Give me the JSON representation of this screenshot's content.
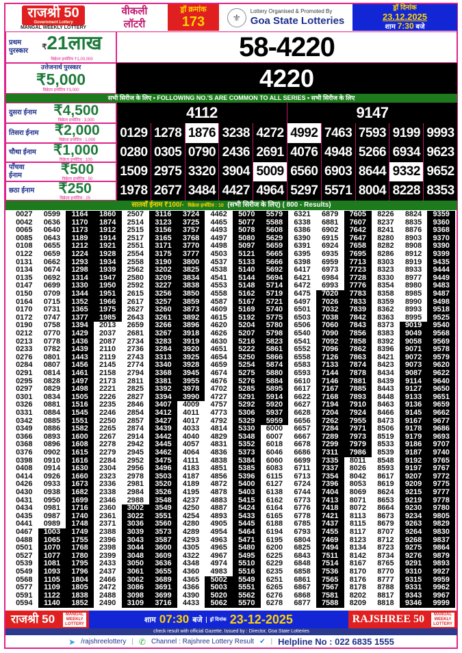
{
  "header": {
    "logo_title": "राजश्री 50",
    "logo_sub": "Government Lottery",
    "logo_tag": "MANGAL WEEKLY LOTTERY",
    "weekly_1": "वीकली",
    "weekly_2": "लॉटरी",
    "draw_no_label": "ड्रॉ क्रमांक",
    "draw_no": "173",
    "organised_by": "Lottery Organised & Promoted By",
    "organiser": "Goa State Lotteries",
    "date_label": "ड्रॉ दिनांक",
    "date": "23.12.2025",
    "time_pre": "शाम",
    "time": "7:30",
    "time_post": "बजे"
  },
  "first": {
    "label_1": "प्रथम",
    "label_2": "पुरस्कार",
    "currency": "₹",
    "amount": "21लाख",
    "incentive": "विक्रेता इन्सेंटिव ₹1,00,000",
    "number": "58-4220"
  },
  "consolation": {
    "label": "उत्तेजनार्थ पुरस्कार",
    "amount": "₹5,000",
    "incentive": "विक्रेता इन्सेंटिव ₹3,000",
    "number": "4220"
  },
  "common_strip": "सभी सिरीज के लिए  •  FOLLOWING NO.'S ARE COMMON TO ALL SERIES  •  सभी सिरीज के लिए",
  "prizes": [
    {
      "label": "दुसरा ईनाम",
      "amount": "₹4,500",
      "incentive": "विक्रेता इन्सेंटिव : 3,000",
      "numbers": [
        "4112",
        "9147"
      ],
      "inverted": []
    },
    {
      "label": "तिसरा ईनाम",
      "amount": "₹2,000",
      "incentive": "विक्रेता इन्सेंटिव : 1,000",
      "numbers": [
        "0129",
        "1278",
        "1876",
        "3238",
        "4272",
        "4992",
        "7463",
        "7593",
        "9199",
        "9993"
      ],
      "inverted": [
        "1876",
        "4992"
      ]
    },
    {
      "label": "चौथा ईनाम",
      "amount": "₹1,000",
      "incentive": "विक्रेता इन्सेंटिव : 100",
      "numbers": [
        "0280",
        "0305",
        "0790",
        "2436",
        "2691",
        "4076",
        "4948",
        "5266",
        "6934",
        "9623"
      ],
      "inverted": []
    },
    {
      "label": "पाँचवा ईनाम",
      "amount": "₹500",
      "incentive": "विक्रेता इन्सेंटिव : 50",
      "numbers": [
        "1509",
        "2975",
        "3320",
        "3904",
        "5009",
        "6560",
        "6903",
        "8644",
        "9332",
        "9652"
      ],
      "inverted": [
        "5009",
        "9332"
      ]
    },
    {
      "label": "छठा ईनाम",
      "amount": "₹250",
      "incentive": "विक्रेता इन्सेंटिव : 25",
      "numbers": [
        "1978",
        "2677",
        "3484",
        "4427",
        "4964",
        "5297",
        "5571",
        "8004",
        "8228",
        "8353"
      ],
      "inverted": []
    }
  ],
  "seventh": {
    "title": "सातवाँ ईनाम ₹100/-",
    "incentive": "विक्रेता इन्सेंटिव : 10",
    "note": "(सभी सिरीज के लिए)",
    "count": "( 800 - Results)",
    "columns": [
      [
        "0027",
        "0042",
        "0065",
        "0085",
        "0108",
        "0122",
        "0131",
        "0134",
        "0135",
        "0147",
        "0150",
        "0164",
        "0170",
        "0172",
        "0190",
        "0212",
        "0213",
        "0233",
        "0276",
        "0284",
        "0291",
        "0295",
        "0297",
        "0301",
        "0326",
        "0331",
        "0342",
        "0349",
        "0366",
        "0368",
        "0376",
        "0398",
        "0408",
        "0414",
        "0426",
        "0430",
        "0431",
        "0434",
        "0435",
        "0441",
        "0467",
        "0488",
        "0501",
        "0527",
        "0539",
        "0549",
        "0568",
        "0577",
        "0591",
        "0594"
      ],
      [
        "0599",
        "0636",
        "0640",
        "0643",
        "0655",
        "0659",
        "0662",
        "0674",
        "0692",
        "0699",
        "0709",
        "0715",
        "0731",
        "0747",
        "0758",
        "0770",
        "0778",
        "0782",
        "0801",
        "0807",
        "0814",
        "0828",
        "0829",
        "0834",
        "0881",
        "0884",
        "0885",
        "0886",
        "0893",
        "0896",
        "0902",
        "0910",
        "0914",
        "0926",
        "0933",
        "0938",
        "0950",
        "0981",
        "0987",
        "0989",
        "1003",
        "1065",
        "1070",
        "1077",
        "1081",
        "1093",
        "1105",
        "1109",
        "1122",
        "1140"
      ],
      [
        "1164",
        "1170",
        "1173",
        "1189",
        "1212",
        "1224",
        "1293",
        "1298",
        "1314",
        "1330",
        "1344",
        "1352",
        "1365",
        "1377",
        "1394",
        "1429",
        "1436",
        "1439",
        "1443",
        "1456",
        "1461",
        "1497",
        "1498",
        "1505",
        "1516",
        "1545",
        "1551",
        "1582",
        "1600",
        "1608",
        "1615",
        "1616",
        "1630",
        "1660",
        "1673",
        "1682",
        "1699",
        "1716",
        "1740",
        "1748",
        "1749",
        "1755",
        "1768",
        "1780",
        "1795",
        "1796",
        "1804",
        "1805",
        "1838",
        "1852"
      ],
      [
        "1860",
        "1874",
        "1912",
        "1914",
        "1921",
        "1928",
        "1934",
        "1939",
        "1947",
        "1950",
        "1951",
        "1966",
        "1975",
        "1985",
        "2013",
        "2037",
        "2087",
        "2110",
        "2119",
        "2145",
        "2158",
        "2173",
        "2221",
        "2226",
        "2235",
        "2246",
        "2250",
        "2265",
        "2267",
        "2278",
        "2279",
        "2284",
        "2304",
        "2323",
        "2336",
        "2338",
        "2346",
        "2360",
        "2361",
        "2371",
        "2388",
        "2396",
        "2398",
        "2399",
        "2433",
        "2437",
        "2466",
        "2472",
        "2488",
        "2490"
      ],
      [
        "2507",
        "2514",
        "2515",
        "2517",
        "2551",
        "2554",
        "2558",
        "2562",
        "2580",
        "2592",
        "2615",
        "2617",
        "2627",
        "2643",
        "2659",
        "2681",
        "2734",
        "2736",
        "2743",
        "2774",
        "2794",
        "2811",
        "2825",
        "2827",
        "2846",
        "2854",
        "2857",
        "2874",
        "2914",
        "2942",
        "2945",
        "2952",
        "2956",
        "2978",
        "2981",
        "2984",
        "2988",
        "3002",
        "3022",
        "3036",
        "3039",
        "3043",
        "3044",
        "3048",
        "3050",
        "3061",
        "3062",
        "3086",
        "3098",
        "3109"
      ],
      [
        "3116",
        "3123",
        "3156",
        "3165",
        "3171",
        "3175",
        "3190",
        "3202",
        "3209",
        "3227",
        "3256",
        "3257",
        "3260",
        "3261",
        "3266",
        "3267",
        "3283",
        "3284",
        "3313",
        "3340",
        "3368",
        "3381",
        "3392",
        "3394",
        "3407",
        "3412",
        "3427",
        "3439",
        "3442",
        "3445",
        "3462",
        "3475",
        "3496",
        "3503",
        "3520",
        "3526",
        "3548",
        "3549",
        "3551",
        "3560",
        "3573",
        "3587",
        "3600",
        "3609",
        "3636",
        "3655",
        "3689",
        "3691",
        "3699",
        "3716"
      ],
      [
        "3724",
        "3725",
        "3757",
        "3768",
        "3770",
        "3777",
        "3800",
        "3825",
        "3834",
        "3838",
        "3850",
        "3859",
        "3873",
        "3892",
        "3896",
        "3918",
        "3919",
        "3920",
        "3925",
        "3928",
        "3945",
        "3955",
        "3978",
        "3990",
        "4009",
        "4011",
        "4017",
        "4033",
        "4040",
        "4057",
        "4064",
        "4111",
        "4183",
        "4187",
        "4189",
        "4195",
        "4237",
        "4250",
        "4254",
        "4280",
        "4289",
        "4293",
        "4305",
        "4322",
        "4348",
        "4360",
        "4365",
        "4366",
        "4390",
        "4433"
      ],
      [
        "4462",
        "4465",
        "4493",
        "4497",
        "4498",
        "4503",
        "4537",
        "4538",
        "4541",
        "4553",
        "4558",
        "4587",
        "4609",
        "4615",
        "4620",
        "4626",
        "4630",
        "4651",
        "4654",
        "4659",
        "4674",
        "4676",
        "4702",
        "4727",
        "4757",
        "4773",
        "4792",
        "4814",
        "4829",
        "4831",
        "4836",
        "4838",
        "4851",
        "4856",
        "4872",
        "4878",
        "4883",
        "4887",
        "4893",
        "4905",
        "4954",
        "4963",
        "4965",
        "4967",
        "4974",
        "4983",
        "5002",
        "5003",
        "5020",
        "5062"
      ],
      [
        "5070",
        "5077",
        "5078",
        "5080",
        "5097",
        "5121",
        "5133",
        "5140",
        "5144",
        "5148",
        "5162",
        "5167",
        "5169",
        "5192",
        "5204",
        "5207",
        "5216",
        "5222",
        "5250",
        "5254",
        "5275",
        "5276",
        "5285",
        "5291",
        "5292",
        "5306",
        "5329",
        "5330",
        "5348",
        "5352",
        "5373",
        "5384",
        "5385",
        "5396",
        "5400",
        "5403",
        "5415",
        "5424",
        "5433",
        "5445",
        "5464",
        "5471",
        "5480",
        "5495",
        "5510",
        "5516",
        "5549",
        "5551",
        "5562",
        "5570"
      ],
      [
        "5579",
        "5588",
        "5608",
        "5629",
        "5659",
        "5665",
        "5666",
        "5692",
        "5694",
        "5714",
        "5719",
        "5721",
        "5740",
        "5775",
        "5780",
        "5798",
        "5823",
        "5861",
        "5866",
        "5874",
        "5880",
        "5884",
        "5895",
        "5914",
        "5920",
        "5937",
        "5959",
        "6000",
        "6007",
        "6018",
        "6046",
        "6060",
        "6083",
        "6115",
        "6127",
        "6138",
        "6162",
        "6164",
        "6165",
        "6188",
        "6194",
        "6195",
        "6200",
        "6225",
        "6229",
        "6235",
        "6251",
        "6265",
        "6276",
        "6278"
      ],
      [
        "6321",
        "6338",
        "6386",
        "6390",
        "6391",
        "6395",
        "6398",
        "6417",
        "6421",
        "6472",
        "6475",
        "6497",
        "6501",
        "6503",
        "6506",
        "6540",
        "6541",
        "6552",
        "6558",
        "6583",
        "6593",
        "6610",
        "6617",
        "6622",
        "6627",
        "6628",
        "6656",
        "6657",
        "6667",
        "6678",
        "6686",
        "6699",
        "6711",
        "6713",
        "6724",
        "6744",
        "6773",
        "6776",
        "6778",
        "6785",
        "6793",
        "6804",
        "6825",
        "6843",
        "6848",
        "6858",
        "6861",
        "6867",
        "6868",
        "6877"
      ],
      [
        "6879",
        "6881",
        "6902",
        "6915",
        "6924",
        "6935",
        "6959",
        "6973",
        "6984",
        "6993",
        "7020",
        "7026",
        "7032",
        "7038",
        "7060",
        "7090",
        "7092",
        "7096",
        "7126",
        "7133",
        "7144",
        "7146",
        "7167",
        "7168",
        "7194",
        "7204",
        "7262",
        "7284",
        "7289",
        "7299",
        "7311",
        "7335",
        "7337",
        "7354",
        "7396",
        "7404",
        "7413",
        "7418",
        "7421",
        "7437",
        "7455",
        "7469",
        "7494",
        "7511",
        "7514",
        "7536",
        "7565",
        "7567",
        "7581",
        "7588"
      ],
      [
        "7605",
        "7607",
        "7642",
        "7647",
        "7658",
        "7695",
        "7713",
        "7723",
        "7728",
        "7776",
        "7783",
        "7833",
        "7839",
        "7842",
        "7843",
        "7856",
        "7858",
        "7862",
        "7863",
        "7874",
        "7878",
        "7881",
        "7885",
        "7893",
        "7910",
        "7924",
        "7955",
        "7971",
        "7973",
        "7979",
        "7986",
        "8011",
        "8026",
        "8042",
        "8053",
        "8069",
        "8071",
        "8072",
        "8113",
        "8115",
        "8117",
        "8123",
        "8134",
        "8142",
        "8167",
        "8170",
        "8176",
        "8178",
        "8202",
        "8209"
      ],
      [
        "8226",
        "8237",
        "8241",
        "8280",
        "8282",
        "8286",
        "8303",
        "8323",
        "8330",
        "8354",
        "8358",
        "8359",
        "8362",
        "8363",
        "8373",
        "8383",
        "8392",
        "8396",
        "8421",
        "8423",
        "8434",
        "8439",
        "8443",
        "8448",
        "8463",
        "8466",
        "8473",
        "8506",
        "8519",
        "8533",
        "8539",
        "8548",
        "8593",
        "8617",
        "8619",
        "8624",
        "8653",
        "8664",
        "8673",
        "8679",
        "8707",
        "8712",
        "8723",
        "8734",
        "8765",
        "8770",
        "8777",
        "8788",
        "8817",
        "8818"
      ],
      [
        "8824",
        "8835",
        "8876",
        "8903",
        "8908",
        "8912",
        "8919",
        "8933",
        "8977",
        "8980",
        "8985",
        "8990",
        "8993",
        "8995",
        "9019",
        "9049",
        "9058",
        "9071",
        "9072",
        "9073",
        "9087",
        "9114",
        "9127",
        "9133",
        "9136",
        "9145",
        "9167",
        "9178",
        "9179",
        "9186",
        "9187",
        "9192",
        "9197",
        "9207",
        "9209",
        "9215",
        "9219",
        "9230",
        "9234",
        "9263",
        "9264",
        "9268",
        "9275",
        "9276",
        "9291",
        "9310",
        "9315",
        "9331",
        "9343",
        "9346"
      ],
      [
        "9359",
        "9360",
        "9368",
        "9370",
        "9390",
        "9399",
        "9435",
        "9444",
        "9449",
        "9483",
        "9487",
        "9498",
        "9518",
        "9525",
        "9540",
        "9568",
        "9569",
        "9578",
        "9579",
        "9620",
        "9622",
        "9640",
        "9650",
        "9651",
        "9659",
        "9662",
        "9677",
        "9686",
        "9693",
        "9707",
        "9740",
        "9765",
        "9767",
        "9772",
        "9775",
        "9777",
        "9778",
        "9780",
        "9805",
        "9829",
        "9830",
        "9837",
        "9864",
        "9879",
        "9893",
        "9927",
        "9959",
        "9962",
        "9967",
        "9999"
      ]
    ]
  },
  "footer": {
    "logo": "राजश्री 50",
    "tag": "MANGAL WEEKLY LOTTERY",
    "time_pre": "शाम",
    "time": "07:30",
    "time_post": "बजे",
    "date_label": "ड्रॉ दिनांक",
    "date": "23-12-2025",
    "brand": "RAJSHREE 50",
    "gazette": "check result with official Gazette. Issued by : Director, Goa State Lotteries",
    "telegram": "/rajshreelottery",
    "channel": "Channel : Rajshree Lottery Result",
    "helpline": "Helpline No : 022 6835 1555"
  },
  "colors": {
    "pink": "#e0218a",
    "red": "#e02020",
    "green": "#1d7a1d",
    "blue": "#1326d6",
    "yellow": "#ffd400"
  }
}
